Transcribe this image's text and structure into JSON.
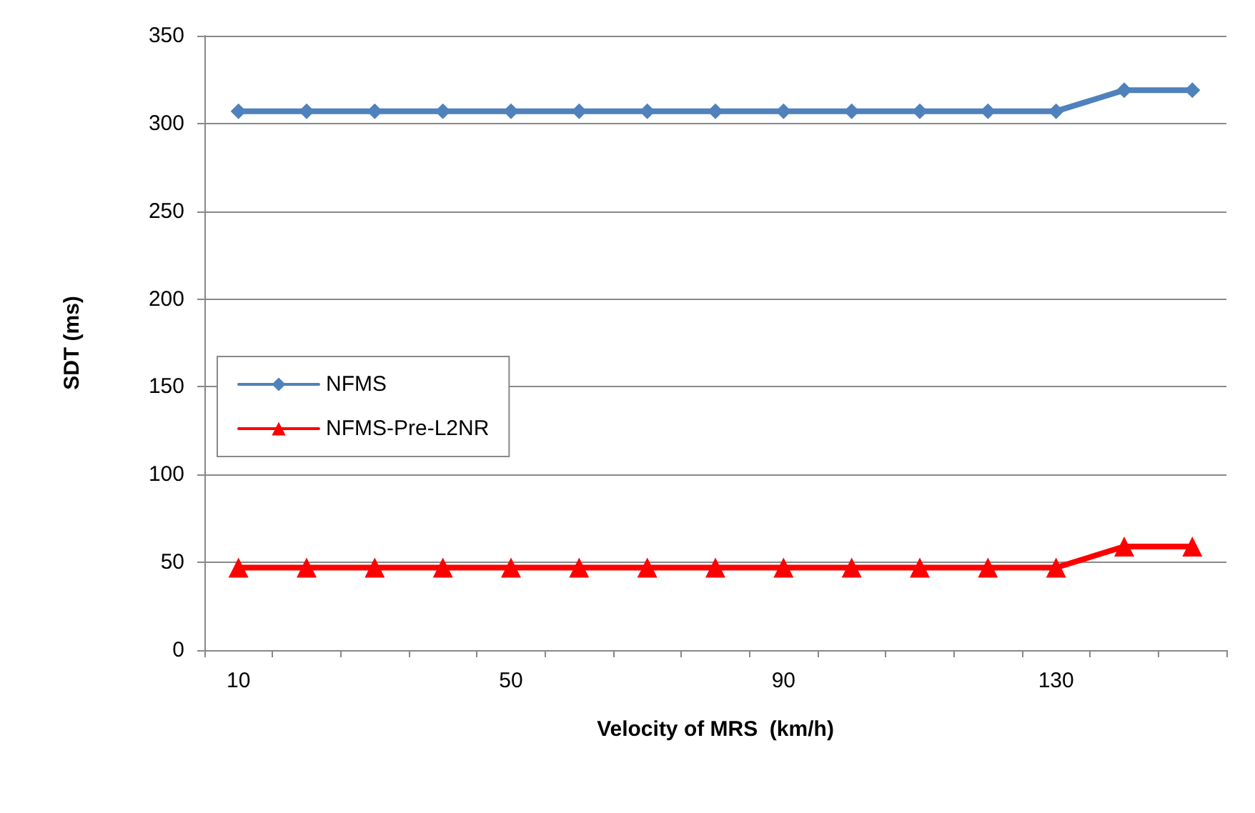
{
  "chart_data": {
    "type": "line",
    "xlabel": "Velocity of MRS  (km/h)",
    "ylabel": "SDT (ms)",
    "categories": [
      "10",
      null,
      null,
      null,
      "50",
      null,
      null,
      null,
      "90",
      null,
      null,
      null,
      "130",
      null,
      null
    ],
    "series": [
      {
        "name": "NFMS",
        "color": "#4f81bd",
        "marker": "diamond",
        "values": [
          307,
          307,
          307,
          307,
          307,
          307,
          307,
          307,
          307,
          307,
          307,
          307,
          307,
          319,
          319
        ]
      },
      {
        "name": "NFMS-Pre-L2NR",
        "color": "#ff0000",
        "marker": "triangle",
        "values": [
          47,
          47,
          47,
          47,
          47,
          47,
          47,
          47,
          47,
          47,
          47,
          47,
          47,
          59,
          59
        ]
      }
    ],
    "ylim": [
      0,
      350
    ],
    "yticks": [
      0,
      50,
      100,
      150,
      200,
      250,
      300,
      350
    ],
    "grid": "y",
    "legend": "left"
  }
}
